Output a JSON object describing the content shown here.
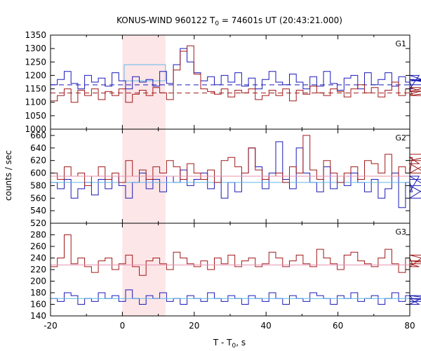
{
  "chart_data": [
    {
      "type": "line",
      "panel": "G1",
      "title": "KONUS-WIND 960122 T0 = 74601s UT (20:43:21.000)",
      "ylabel": "counts / sec",
      "xlabel": "",
      "xlim": [
        -20,
        80
      ],
      "ylim": [
        1000,
        1350
      ],
      "yticks": [
        1000,
        1050,
        1100,
        1150,
        1200,
        1250,
        1300,
        1350
      ],
      "shaded_interval": [
        0,
        12
      ],
      "grid": false,
      "bin_width": 1.9,
      "series": [
        {
          "color": "#1a1ab8",
          "background": 1165,
          "values": [
            1165,
            1185,
            1215,
            1170,
            1150,
            1200,
            1175,
            1190,
            1160,
            1210,
            1180,
            1150,
            1195,
            1175,
            1185,
            1160,
            1215,
            1170,
            1240,
            1300,
            1250,
            1210,
            1180,
            1195,
            1165,
            1200,
            1175,
            1210,
            1160,
            1190,
            1150,
            1185,
            1215,
            1175,
            1165,
            1205,
            1175,
            1150,
            1195,
            1160,
            1215,
            1170,
            1145,
            1190,
            1200,
            1150,
            1210,
            1165,
            1185,
            1210,
            1160,
            1195,
            1175,
            1150,
            1200,
            1180,
            1185,
            1165
          ]
        },
        {
          "color": "#a01818",
          "background": 1135,
          "values": [
            1105,
            1125,
            1150,
            1100,
            1145,
            1125,
            1150,
            1110,
            1140,
            1125,
            1150,
            1100,
            1130,
            1145,
            1125,
            1155,
            1135,
            1110,
            1220,
            1290,
            1310,
            1205,
            1150,
            1140,
            1130,
            1150,
            1120,
            1145,
            1135,
            1150,
            1110,
            1125,
            1145,
            1125,
            1150,
            1105,
            1145,
            1130,
            1160,
            1135,
            1125,
            1150,
            1140,
            1120,
            1150,
            1165,
            1135,
            1155,
            1120,
            1145,
            1175,
            1125,
            1150,
            1130,
            1140,
            1155,
            1125,
            1140
          ]
        }
      ],
      "annotations": [
        {
          "text": "G1",
          "x": 78,
          "y": 1300
        }
      ],
      "extra_box": {
        "x": [
          0.5,
          12
        ],
        "y": [
          1180,
          1240
        ]
      }
    },
    {
      "type": "line",
      "panel": "G2",
      "xlim": [
        -20,
        80
      ],
      "ylim": [
        520,
        670
      ],
      "yticks": [
        520,
        540,
        560,
        580,
        600,
        620,
        640,
        660
      ],
      "shaded_interval": [
        0,
        12
      ],
      "bin_width": 1.9,
      "series": [
        {
          "color": "#1a1ab8",
          "background": 585,
          "values": [
            585,
            575,
            590,
            560,
            575,
            585,
            565,
            590,
            575,
            595,
            580,
            560,
            585,
            600,
            575,
            590,
            570,
            595,
            585,
            605,
            580,
            590,
            600,
            575,
            595,
            560,
            585,
            570,
            600,
            640,
            610,
            575,
            600,
            650,
            590,
            575,
            640,
            600,
            585,
            570,
            610,
            575,
            595,
            580,
            600,
            585,
            570,
            590,
            560,
            575,
            600,
            545,
            585,
            570,
            595,
            580,
            560,
            590
          ]
        },
        {
          "color": "#a01818",
          "background": 595,
          "values": [
            600,
            590,
            610,
            595,
            600,
            580,
            595,
            610,
            590,
            600,
            585,
            620,
            595,
            605,
            590,
            610,
            600,
            620,
            610,
            590,
            615,
            600,
            590,
            605,
            585,
            620,
            625,
            610,
            600,
            640,
            605,
            590,
            595,
            600,
            585,
            610,
            600,
            660,
            605,
            590,
            620,
            600,
            585,
            600,
            610,
            590,
            620,
            615,
            600,
            630,
            595,
            610,
            600,
            625,
            615,
            600,
            620,
            630
          ]
        }
      ],
      "annotations": [
        {
          "text": "G2",
          "x": 78,
          "y": 660
        }
      ]
    },
    {
      "type": "line",
      "panel": "G3",
      "xlim": [
        -20,
        80
      ],
      "ylim": [
        140,
        300
      ],
      "yticks": [
        140,
        160,
        180,
        200,
        220,
        240,
        260,
        280
      ],
      "shaded_interval": [
        0,
        12
      ],
      "bin_width": 1.9,
      "series": [
        {
          "color": "#1a1ab8",
          "background": 170,
          "values": [
            170,
            165,
            180,
            175,
            160,
            170,
            165,
            180,
            170,
            175,
            165,
            185,
            170,
            160,
            175,
            170,
            180,
            165,
            170,
            160,
            175,
            170,
            165,
            180,
            170,
            165,
            175,
            170,
            160,
            175,
            170,
            165,
            180,
            170,
            160,
            175,
            170,
            165,
            180,
            175,
            170,
            160,
            175,
            170,
            180,
            165,
            170,
            175,
            160,
            170,
            180,
            165,
            175,
            170,
            160,
            175,
            170,
            165
          ]
        },
        {
          "color": "#a01818",
          "background": 228,
          "values": [
            225,
            240,
            280,
            230,
            240,
            225,
            215,
            235,
            240,
            220,
            230,
            245,
            225,
            210,
            235,
            240,
            230,
            220,
            250,
            240,
            230,
            225,
            235,
            220,
            240,
            230,
            245,
            225,
            235,
            240,
            225,
            230,
            250,
            240,
            225,
            235,
            245,
            230,
            225,
            255,
            240,
            230,
            220,
            245,
            250,
            235,
            230,
            225,
            240,
            255,
            230,
            215,
            240,
            230,
            225,
            245,
            235,
            230
          ]
        }
      ],
      "annotations": [
        {
          "text": "G3",
          "x": 78,
          "y": 285
        }
      ],
      "xticks": [
        -20,
        0,
        20,
        40,
        60,
        80
      ],
      "xlabel": "T - T0, s"
    }
  ]
}
